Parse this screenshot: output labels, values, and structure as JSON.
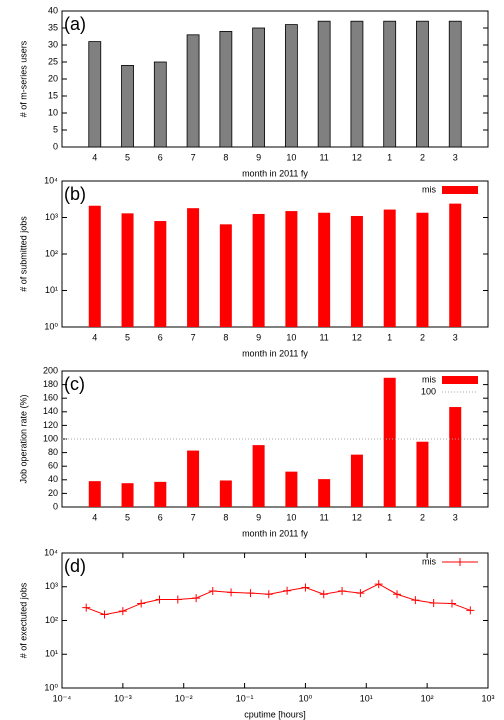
{
  "chart_data": [
    {
      "type": "bar",
      "annotation": "(a)",
      "ylabel": "# of m-series users",
      "xlabel": "month in 2011 fy",
      "categories": [
        "4",
        "5",
        "6",
        "7",
        "8",
        "9",
        "10",
        "11",
        "12",
        "1",
        "2",
        "3"
      ],
      "values": [
        31,
        24,
        25,
        33,
        34,
        35,
        36,
        37,
        37,
        37,
        37,
        37
      ],
      "color": "#808080",
      "ylim": [
        0,
        40
      ],
      "yticks": [
        0,
        5,
        10,
        15,
        20,
        25,
        30,
        35,
        40
      ],
      "ylog": false
    },
    {
      "type": "bar",
      "annotation": "(b)",
      "ylabel": "# of submitted jobs",
      "xlabel": "month in 2011 fy",
      "categories": [
        "4",
        "5",
        "6",
        "7",
        "8",
        "9",
        "10",
        "11",
        "12",
        "1",
        "2",
        "3"
      ],
      "series": [
        {
          "name": "mis",
          "color": "#ff0000",
          "values": [
            2100,
            1300,
            800,
            1800,
            650,
            1250,
            1500,
            1350,
            1100,
            1650,
            1350,
            2400
          ]
        }
      ],
      "ylim": [
        1,
        10000
      ],
      "ylog": true,
      "yticks": [
        {
          "value": 1,
          "label": "10⁰"
        },
        {
          "value": 10,
          "label": "10¹"
        },
        {
          "value": 100,
          "label": "10²"
        },
        {
          "value": 1000,
          "label": "10³"
        },
        {
          "value": 10000,
          "label": "10⁴"
        }
      ],
      "legend": "upper right"
    },
    {
      "type": "bar",
      "annotation": "(c)",
      "ylabel": "Job operation rate (%)",
      "xlabel": "month in 2011 fy",
      "categories": [
        "4",
        "5",
        "6",
        "7",
        "8",
        "9",
        "10",
        "11",
        "12",
        "1",
        "2",
        "3"
      ],
      "series": [
        {
          "name": "mis",
          "color": "#ff0000",
          "values": [
            38,
            35,
            37,
            83,
            39,
            91,
            52,
            41,
            77,
            190,
            96,
            147
          ]
        }
      ],
      "reference_line": {
        "value": 100,
        "label": "100",
        "color": "#aaaaaa"
      },
      "ylim": [
        0,
        200
      ],
      "yticks": [
        0,
        20,
        40,
        60,
        80,
        100,
        120,
        140,
        160,
        180,
        200
      ],
      "ylog": false,
      "legend": "upper right"
    },
    {
      "type": "line",
      "annotation": "(d)",
      "ylabel": "# of exectuted jobs",
      "xlabel": "cputime [hours]",
      "x": [
        0.00025,
        0.0005,
        0.001,
        0.002,
        0.004,
        0.008,
        0.016,
        0.03,
        0.06,
        0.125,
        0.25,
        0.5,
        1,
        2,
        4,
        8,
        16,
        32,
        64,
        128,
        256,
        512
      ],
      "series": [
        {
          "name": "mis",
          "color": "#ff0000",
          "values": [
            240,
            150,
            190,
            320,
            420,
            420,
            460,
            750,
            680,
            650,
            600,
            760,
            950,
            600,
            750,
            650,
            1200,
            600,
            400,
            330,
            320,
            200
          ]
        }
      ],
      "xlim": [
        0.0001,
        1000
      ],
      "xlog": true,
      "xticks": [
        {
          "value": 0.0001,
          "label": "10⁻⁴"
        },
        {
          "value": 0.001,
          "label": "10⁻³"
        },
        {
          "value": 0.01,
          "label": "10⁻²"
        },
        {
          "value": 0.1,
          "label": "10⁻¹"
        },
        {
          "value": 1,
          "label": "10⁰"
        },
        {
          "value": 10,
          "label": "10¹"
        },
        {
          "value": 100,
          "label": "10²"
        },
        {
          "value": 1000,
          "label": "10³"
        }
      ],
      "ylim": [
        1,
        10000
      ],
      "ylog": true,
      "yticks": [
        {
          "value": 1,
          "label": "10⁰"
        },
        {
          "value": 10,
          "label": "10¹"
        },
        {
          "value": 100,
          "label": "10²"
        },
        {
          "value": 1000,
          "label": "10³"
        },
        {
          "value": 10000,
          "label": "10⁴"
        }
      ],
      "legend": "upper right"
    }
  ]
}
